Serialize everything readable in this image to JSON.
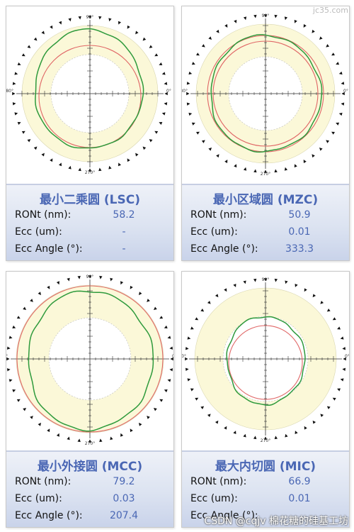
{
  "watermark_top": "jc35.com",
  "watermark_bottom": "CSDN @cqjv 棉花糖的硅基工坊",
  "axis_labels": {
    "top": "90°",
    "bottom": "270°",
    "left": "180°",
    "right": "0°"
  },
  "colors": {
    "fit_circle": "#e06666",
    "profile": "#2e9a3c",
    "band": "#fbf8d8",
    "title": "#4a67b4"
  },
  "panels": [
    {
      "title": "最小二乘圆 (LSC)",
      "rows": [
        {
          "label": "RONt (nm):",
          "value": "58.2"
        },
        {
          "label": "Ecc (um):",
          "value": "-"
        },
        {
          "label": "Ecc Angle (°):",
          "value": "-"
        }
      ]
    },
    {
      "title": "最小区域圆 (MZC)",
      "rows": [
        {
          "label": "RONt (nm):",
          "value": "50.9"
        },
        {
          "label": "Ecc (um):",
          "value": "0.01"
        },
        {
          "label": "Ecc Angle (°):",
          "value": "333.3"
        }
      ]
    },
    {
      "title": "最小外接圆 (MCC)",
      "rows": [
        {
          "label": "RONt (nm):",
          "value": "79.2"
        },
        {
          "label": "Ecc (um):",
          "value": "0.03"
        },
        {
          "label": "Ecc Angle (°):",
          "value": "207.4"
        }
      ]
    },
    {
      "title": "最大内切圆 (MIC)",
      "rows": [
        {
          "label": "RONt (nm):",
          "value": "66.9"
        },
        {
          "label": "Ecc (um):",
          "value": "0.01"
        },
        {
          "label": "Ecc Angle (°):",
          "value": ""
        }
      ]
    }
  ]
}
